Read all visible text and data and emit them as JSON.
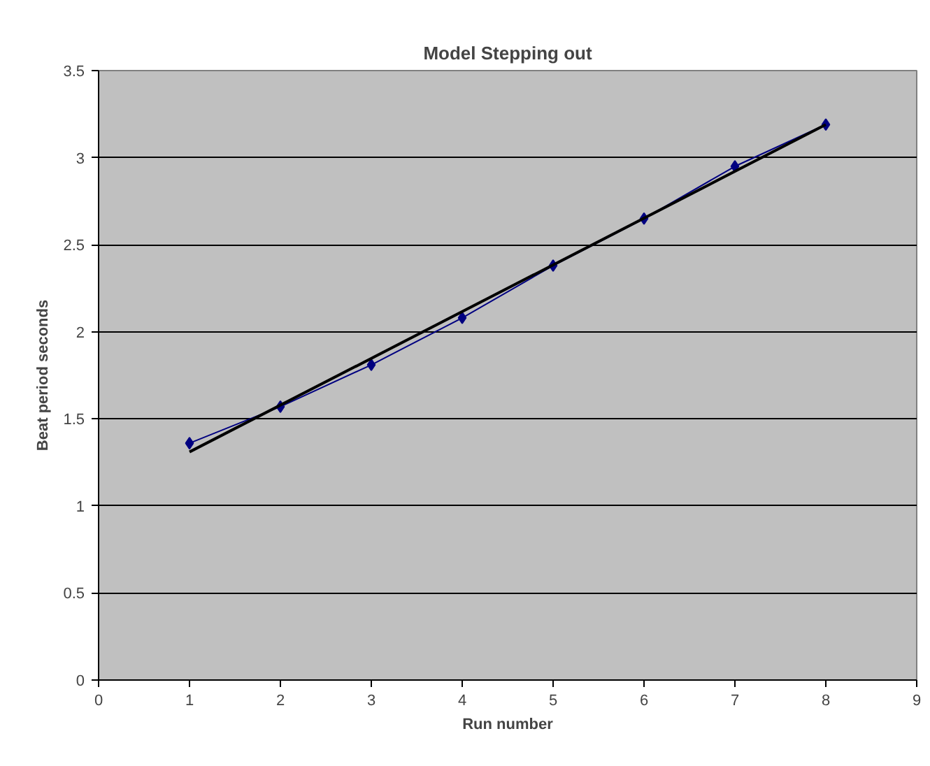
{
  "chart_data": {
    "type": "line",
    "title": "Model Stepping out",
    "xlabel": "Run number",
    "ylabel": "Beat period seconds",
    "xlim": [
      0,
      9
    ],
    "xticks": [
      0,
      1,
      2,
      3,
      4,
      5,
      6,
      7,
      8,
      9
    ],
    "ylim": [
      0,
      3.5
    ],
    "yticks": [
      0,
      0.5,
      1,
      1.5,
      2,
      2.5,
      3,
      3.5
    ],
    "grid": "y",
    "marker": "diamond",
    "x": [
      1,
      2,
      3,
      4,
      5,
      6,
      7,
      8
    ],
    "series": [
      {
        "color": "#000080",
        "values": [
          1.36,
          1.57,
          1.81,
          2.08,
          2.38,
          2.65,
          2.95,
          3.19
        ]
      },
      {
        "color": "#000000",
        "marker": "none",
        "x": [
          1,
          8
        ],
        "values": [
          1.31,
          3.19
        ]
      }
    ]
  }
}
